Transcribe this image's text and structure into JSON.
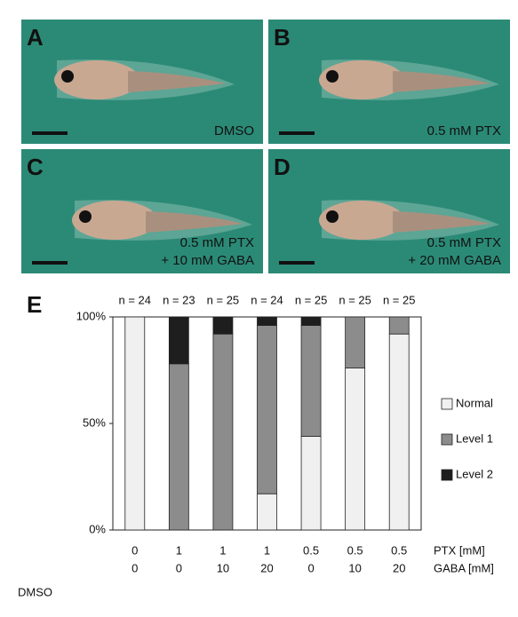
{
  "panels": [
    {
      "label": "A",
      "caption": [
        "DMSO"
      ]
    },
    {
      "label": "B",
      "caption": [
        "0.5 mM PTX"
      ]
    },
    {
      "label": "C",
      "caption": [
        "0.5 mM PTX",
        "+ 10 mM GABA"
      ]
    },
    {
      "label": "D",
      "caption": [
        "0.5 mM PTX",
        "+ 20 mM GABA"
      ]
    }
  ],
  "chart_data": {
    "type": "stacked_bar",
    "label": "E",
    "n_labels": [
      "n = 24",
      "n = 23",
      "n = 25",
      "n = 24",
      "n = 25",
      "n = 25",
      "n = 25"
    ],
    "categories": [
      "0",
      "1",
      "1",
      "1",
      "0.5",
      "0.5",
      "0.5"
    ],
    "categories_row2": [
      "0",
      "0",
      "10",
      "20",
      "0",
      "10",
      "20"
    ],
    "row_labels": [
      "PTX [mM]",
      "GABA [mM]"
    ],
    "control_label": "DMSO",
    "series": [
      {
        "name": "Normal",
        "color": "#f0f0f0",
        "values": [
          100,
          0,
          0,
          17,
          44,
          76,
          92
        ]
      },
      {
        "name": "Level 1",
        "color": "#8c8c8c",
        "values": [
          0,
          78,
          92,
          79,
          52,
          24,
          8
        ]
      },
      {
        "name": "Level 2",
        "color": "#1e1e1e",
        "values": [
          0,
          22,
          8,
          4,
          4,
          0,
          0
        ]
      }
    ],
    "ylim": [
      0,
      100
    ],
    "yticks": [
      {
        "value": 0,
        "label": "0%"
      },
      {
        "value": 50,
        "label": "50%"
      },
      {
        "value": 100,
        "label": "100%"
      }
    ]
  }
}
